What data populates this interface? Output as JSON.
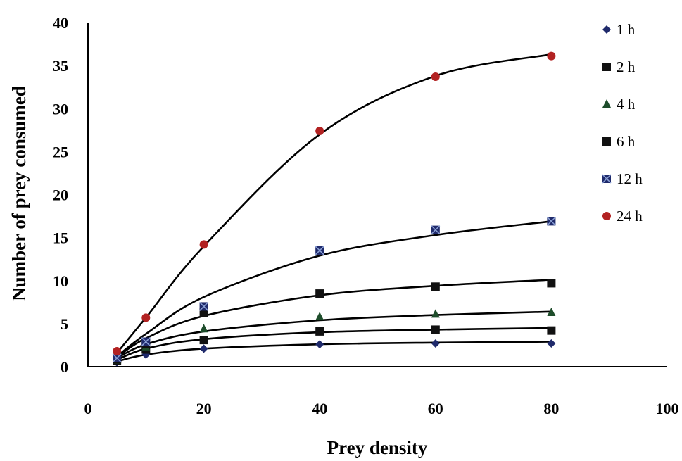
{
  "chart_data": {
    "type": "scatter",
    "title": "",
    "xlabel": "Prey density",
    "ylabel": "Number of prey consumed",
    "xlim": [
      0,
      100
    ],
    "ylim": [
      0,
      40
    ],
    "x_ticks": [
      "0",
      "20",
      "40",
      "60",
      "80",
      "100"
    ],
    "y_ticks": [
      "0",
      "5",
      "10",
      "15",
      "20",
      "25",
      "30",
      "35",
      "40"
    ],
    "grid": false,
    "legend_position": "right",
    "x": [
      5,
      10,
      20,
      40,
      60,
      80
    ],
    "series": [
      {
        "name": "1 h",
        "marker": "diamond",
        "color": "#1f2a6b",
        "values": [
          0.5,
          1.4,
          2.1,
          2.6,
          2.7,
          2.7
        ],
        "fit": [
          0.6,
          1.4,
          2.1,
          2.6,
          2.8,
          2.9
        ]
      },
      {
        "name": "2 h",
        "marker": "square",
        "color": "#111111",
        "values": [
          0.7,
          2.0,
          3.1,
          4.1,
          4.3,
          4.2
        ],
        "fit": [
          0.8,
          2.1,
          3.2,
          4.0,
          4.3,
          4.5
        ]
      },
      {
        "name": "4 h",
        "marker": "triangle",
        "color": "#1e4d2b",
        "values": [
          0.8,
          2.3,
          4.4,
          5.8,
          6.1,
          6.3
        ],
        "fit": [
          1.0,
          2.6,
          4.1,
          5.4,
          6.0,
          6.4
        ]
      },
      {
        "name": "6 h",
        "marker": "square",
        "color": "#111111",
        "values": [
          0.9,
          2.7,
          6.3,
          8.5,
          9.3,
          9.7
        ],
        "fit": [
          1.1,
          3.3,
          5.9,
          8.3,
          9.4,
          10.1
        ]
      },
      {
        "name": "12 h",
        "marker": "x-square",
        "color": "#1f2a6b",
        "values": [
          1.0,
          2.9,
          7.0,
          13.5,
          15.9,
          16.9
        ],
        "fit": [
          1.2,
          3.8,
          8.1,
          12.9,
          15.3,
          16.9
        ]
      },
      {
        "name": "24 h",
        "marker": "circle",
        "color": "#b22222",
        "values": [
          1.8,
          5.7,
          14.2,
          27.4,
          33.7,
          36.1
        ],
        "fit": [
          1.6,
          5.7,
          14.0,
          27.0,
          33.8,
          36.3
        ]
      }
    ]
  }
}
